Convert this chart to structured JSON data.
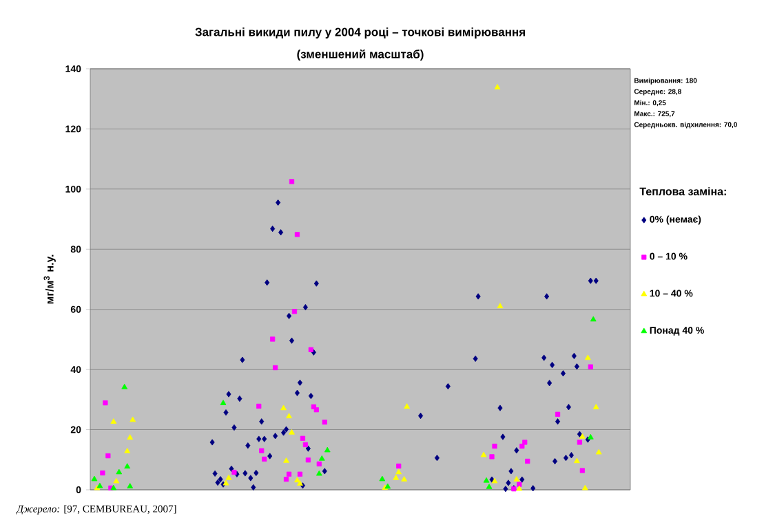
{
  "chart_data": {
    "type": "scatter",
    "title": "Загальні викиди пилу у 2004 році – точкові вимірювання",
    "subtitle": "(зменшений масштаб)",
    "ylabel": "мг/м$^{3}$ н.у.",
    "legend_title": "Теплова заміна:",
    "annotations": [
      "Вимірювання: 180",
      "Середнє: 28,8",
      "Мін.: 0,25",
      "Макс.: 725,7",
      "Середньокв. відхилення: 70,0",
      "*Джерело:* [97, CEMBUREAU, 2007]"
    ],
    "categories": [
      null,
      null,
      null,
      null,
      null,
      null,
      null,
      null,
      null,
      null,
      null,
      null,
      null,
      null,
      null,
      null,
      null,
      null,
      null,
      null,
      null,
      null,
      null,
      null,
      null,
      null,
      null,
      null,
      null,
      null,
      null,
      null,
      null,
      null,
      null,
      null,
      null,
      null,
      null,
      null,
      null,
      null,
      null,
      null,
      null,
      null,
      null,
      null,
      null,
      null,
      null,
      null,
      null,
      null,
      null,
      null,
      null,
      null,
      null,
      null,
      null,
      null,
      null,
      null,
      null,
      null,
      null,
      null,
      null,
      null,
      null,
      null,
      null,
      null,
      null,
      null,
      null,
      null,
      null,
      null,
      null,
      null,
      null,
      null,
      null,
      null,
      null,
      null,
      null,
      null,
      null,
      null,
      null,
      null,
      null,
      null,
      null,
      null,
      null,
      null,
      null,
      null,
      null,
      null,
      null,
      null,
      null,
      null,
      null,
      null,
      null,
      null,
      null,
      null,
      null,
      null,
      null,
      null,
      null,
      null,
      null,
      null,
      null,
      null,
      null,
      null,
      null,
      null,
      null,
      null,
      null,
      null,
      null,
      null,
      null,
      null,
      null,
      null,
      null,
      null,
      null,
      null,
      null,
      null,
      null,
      null,
      null,
      null,
      null,
      null,
      null,
      null,
      null,
      null,
      null,
      null,
      null,
      null,
      null,
      null,
      null,
      null,
      null,
      null,
      null,
      null,
      null,
      null,
      null,
      null,
      null,
      null,
      null,
      null,
      null,
      null,
      null,
      null,
      null,
      null,
      null,
      null,
      null,
      null,
      null,
      null,
      null,
      null,
      null,
      null,
      null,
      null,
      null,
      null,
      null,
      null,
      null
    ],
    "ylim": [
      0,
      140
    ],
    "yticks": [
      0,
      20,
      40,
      60,
      80,
      100,
      120,
      140
    ],
    "grid": "y",
    "legend": "right",
    "series": [
      {
        "name": "0% (немає)",
        "color": "#000080",
        "marker": "diamond",
        "values": [
          null,
          null,
          null,
          null,
          null,
          null,
          null,
          null,
          null,
          null,
          null,
          null,
          null,
          null,
          null,
          null,
          null,
          null,
          null,
          null,
          null,
          null,
          null,
          null,
          null,
          null,
          null,
          null,
          null,
          null,
          null,
          null,
          null,
          null,
          null,
          null,
          null,
          null,
          null,
          null,
          null,
          null,
          null,
          null,
          15.8,
          5.4,
          2.4,
          3.5,
          1.8,
          25.7,
          31.8,
          7.0,
          20.7,
          5.2,
          30.3,
          43.2,
          5.5,
          14.7,
          3.9,
          0.8,
          5.6,
          16.9,
          22.7,
          16.9,
          68.9,
          11.2,
          86.8,
          17.9,
          95.5,
          85.6,
          19.0,
          20.1,
          57.8,
          49.6,
          null,
          32.2,
          35.6,
          1.4,
          60.7,
          13.7,
          31.2,
          45.7,
          68.6,
          null,
          null,
          6.2,
          null,
          null,
          null,
          null,
          null,
          null,
          null,
          null,
          null,
          null,
          null,
          null,
          null,
          null,
          null,
          null,
          null,
          null,
          null,
          null,
          null,
          null,
          null,
          null,
          null,
          null,
          null,
          null,
          null,
          null,
          null,
          null,
          null,
          null,
          24.6,
          null,
          null,
          null,
          null,
          null,
          10.6,
          null,
          null,
          null,
          34.4,
          null,
          null,
          null,
          null,
          null,
          null,
          null,
          null,
          null,
          43.6,
          64.3,
          null,
          null,
          null,
          null,
          3.4,
          null,
          null,
          27.2,
          17.6,
          0.3,
          2.3,
          6.2,
          0.5,
          13.1,
          null,
          3.4,
          null,
          null,
          null,
          0.5,
          null,
          null,
          null,
          43.9,
          64.3,
          35.5,
          41.5,
          9.5,
          22.7,
          null,
          38.7,
          10.6,
          27.5,
          11.5,
          44.5,
          41.0,
          18.5,
          null,
          null,
          16.7,
          69.5,
          null,
          69.5,
          null,
          null,
          null,
          null,
          null,
          null,
          null,
          null,
          null,
          null,
          null,
          null
        ]
      },
      {
        "name": "0 – 10 %",
        "color": "#ff00ff",
        "marker": "square",
        "values": [
          null,
          null,
          null,
          null,
          5.6,
          28.9,
          11.3,
          0.6,
          null,
          null,
          null,
          null,
          null,
          null,
          null,
          null,
          null,
          null,
          null,
          null,
          null,
          null,
          null,
          null,
          null,
          null,
          null,
          null,
          null,
          null,
          null,
          null,
          null,
          null,
          null,
          null,
          null,
          null,
          null,
          null,
          null,
          null,
          null,
          null,
          null,
          null,
          null,
          null,
          null,
          null,
          null,
          null,
          5.8,
          null,
          null,
          null,
          null,
          null,
          null,
          null,
          null,
          27.8,
          13.0,
          10.2,
          null,
          null,
          50.1,
          40.6,
          null,
          null,
          null,
          3.5,
          5.2,
          102.5,
          59.3,
          84.9,
          5.2,
          17.1,
          15.0,
          9.9,
          46.6,
          27.6,
          26.6,
          8.6,
          null,
          22.5,
          null,
          null,
          null,
          null,
          null,
          null,
          null,
          null,
          null,
          null,
          null,
          null,
          null,
          null,
          null,
          null,
          null,
          null,
          null,
          null,
          null,
          null,
          null,
          null,
          null,
          null,
          7.9,
          null,
          null,
          null,
          null,
          null,
          null,
          null,
          null,
          null,
          null,
          null,
          null,
          null,
          null,
          null,
          null,
          null,
          null,
          null,
          null,
          null,
          null,
          null,
          null,
          null,
          null,
          null,
          null,
          null,
          null,
          null,
          null,
          null,
          11.0,
          14.5,
          null,
          null,
          null,
          null,
          null,
          null,
          0.3,
          null,
          1.8,
          14.5,
          15.8,
          9.5,
          null,
          null,
          null,
          null,
          null,
          null,
          null,
          null,
          null,
          null,
          25.1,
          null,
          null,
          null,
          null,
          null,
          null,
          null,
          15.8,
          6.4,
          null,
          null,
          40.9,
          null,
          null,
          null,
          null,
          null,
          null,
          null,
          null,
          null,
          null,
          null,
          null,
          null,
          null
        ]
      },
      {
        "name": "10 – 40 %",
        "color": "#ffff00",
        "marker": "triangle",
        "values": [
          null,
          null,
          0.5,
          null,
          null,
          null,
          null,
          null,
          22.6,
          2.8,
          null,
          null,
          null,
          12.8,
          17.3,
          23.2,
          null,
          null,
          null,
          null,
          null,
          null,
          null,
          null,
          null,
          null,
          null,
          null,
          null,
          null,
          null,
          null,
          null,
          null,
          null,
          null,
          null,
          null,
          null,
          null,
          null,
          null,
          null,
          null,
          null,
          null,
          null,
          null,
          null,
          2.1,
          3.9,
          null,
          null,
          null,
          null,
          null,
          null,
          null,
          null,
          null,
          null,
          null,
          null,
          null,
          null,
          null,
          null,
          null,
          null,
          null,
          27.1,
          9.6,
          24.4,
          19.0,
          null,
          3.1,
          2.0,
          null,
          null,
          null,
          null,
          null,
          null,
          null,
          null,
          null,
          null,
          null,
          null,
          null,
          null,
          null,
          null,
          null,
          null,
          null,
          null,
          null,
          null,
          null,
          null,
          null,
          null,
          null,
          null,
          null,
          null,
          0.6,
          null,
          null,
          null,
          3.9,
          5.8,
          null,
          3.4,
          27.6,
          null,
          null,
          null,
          null,
          null,
          null,
          null,
          null,
          null,
          null,
          null,
          null,
          null,
          null,
          null,
          null,
          null,
          null,
          null,
          null,
          null,
          null,
          null,
          null,
          null,
          null,
          null,
          11.5,
          null,
          null,
          null,
          2.8,
          133.8,
          61.0,
          null,
          null,
          null,
          null,
          null,
          3.4,
          0.3,
          null,
          null,
          null,
          null,
          null,
          null,
          null,
          null,
          null,
          null,
          null,
          null,
          null,
          null,
          null,
          null,
          null,
          null,
          null,
          null,
          9.5,
          null,
          17.6,
          0.5,
          43.8,
          null,
          null,
          27.4,
          12.4,
          null,
          null,
          null,
          null,
          null,
          null,
          null,
          null,
          null,
          null,
          null
        ]
      },
      {
        "name": "Понад 40 %",
        "color": "#00ff00",
        "marker": "triangle",
        "values": [
          null,
          3.5,
          null,
          1.2,
          null,
          null,
          null,
          null,
          0.5,
          null,
          5.8,
          null,
          34.1,
          7.7,
          1.1,
          null,
          null,
          null,
          null,
          null,
          null,
          null,
          null,
          null,
          null,
          null,
          null,
          null,
          null,
          null,
          null,
          null,
          null,
          null,
          null,
          null,
          null,
          null,
          null,
          null,
          null,
          null,
          null,
          null,
          null,
          null,
          null,
          null,
          28.8,
          null,
          null,
          null,
          null,
          null,
          null,
          null,
          null,
          null,
          null,
          null,
          null,
          null,
          null,
          null,
          null,
          null,
          null,
          null,
          null,
          null,
          null,
          null,
          null,
          null,
          null,
          null,
          null,
          null,
          null,
          null,
          null,
          null,
          null,
          5.3,
          10.3,
          null,
          13.1,
          null,
          null,
          null,
          null,
          null,
          null,
          null,
          null,
          null,
          null,
          null,
          null,
          null,
          null,
          null,
          null,
          null,
          null,
          null,
          3.5,
          null,
          1.0,
          null,
          null,
          null,
          null,
          null,
          null,
          null,
          null,
          null,
          null,
          null,
          null,
          null,
          null,
          null,
          null,
          null,
          null,
          null,
          null,
          null,
          null,
          null,
          null,
          null,
          null,
          null,
          null,
          null,
          null,
          null,
          null,
          null,
          null,
          null,
          3.0,
          0.9,
          null,
          null,
          null,
          null,
          null,
          null,
          null,
          null,
          null,
          null,
          null,
          null,
          null,
          null,
          null,
          null,
          null,
          null,
          null,
          null,
          null,
          null,
          null,
          null,
          null,
          null,
          null,
          null,
          null,
          null,
          null,
          null,
          null,
          null,
          null,
          null,
          17.4,
          56.6,
          null,
          null,
          null,
          null,
          null,
          null,
          null,
          null,
          null,
          null,
          null,
          null,
          null
        ]
      }
    ]
  }
}
